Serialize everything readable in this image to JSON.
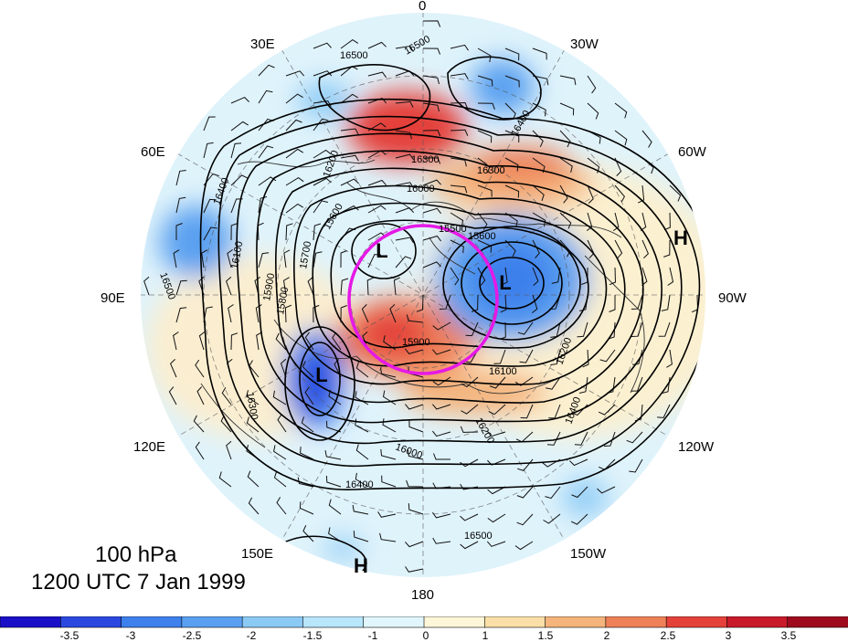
{
  "map": {
    "level": "100 hPa",
    "time": "1200 UTC 7 Jan 1999",
    "longitude_labels": [
      {
        "id": "lon-0",
        "text": "0"
      },
      {
        "id": "lon-30w",
        "text": "30W"
      },
      {
        "id": "lon-60w",
        "text": "60W"
      },
      {
        "id": "lon-90w",
        "text": "90W"
      },
      {
        "id": "lon-120w",
        "text": "120W"
      },
      {
        "id": "lon-150w",
        "text": "150W"
      },
      {
        "id": "lon-180",
        "text": "180"
      },
      {
        "id": "lon-150e",
        "text": "150E"
      },
      {
        "id": "lon-120e",
        "text": "120E"
      },
      {
        "id": "lon-90e",
        "text": "90E"
      },
      {
        "id": "lon-60e",
        "text": "60E"
      },
      {
        "id": "lon-30e",
        "text": "30E"
      }
    ],
    "pressure_centers": [
      "L",
      "L",
      "L",
      "H",
      "H"
    ],
    "contour_labels": [
      "16500",
      "16500",
      "16400",
      "16400",
      "16300",
      "16300",
      "16200",
      "16200",
      "16100",
      "16000",
      "15900",
      "15800",
      "15700",
      "15600",
      "15600",
      "15500",
      "16500",
      "16400",
      "16300",
      "16200",
      "16100",
      "16000",
      "15900",
      "16500",
      "16400"
    ],
    "highlight_color": "#e619e6",
    "colorbar": {
      "ticks": [
        "-3.5",
        "-3",
        "-2.5",
        "-2",
        "-1.5",
        "-1",
        "0",
        "1",
        "1.5",
        "2",
        "2.5",
        "3",
        "3.5"
      ],
      "colors": [
        "#1a10c8",
        "#2a48e0",
        "#3e80ec",
        "#5aa0f0",
        "#8ccaf6",
        "#b8e6fa",
        "#e0f6fc",
        "#fdf6d8",
        "#fae0a8",
        "#f4b47c",
        "#ee8158",
        "#e4413a",
        "#c81a2a",
        "#9e0b1e"
      ]
    }
  }
}
